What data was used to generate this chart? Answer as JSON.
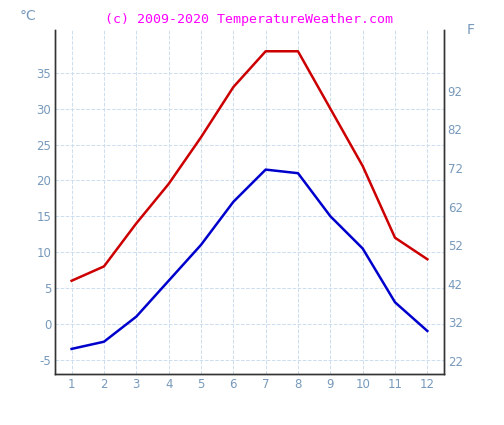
{
  "months": [
    1,
    2,
    3,
    4,
    5,
    6,
    7,
    8,
    9,
    10,
    11,
    12
  ],
  "temp_max_c": [
    6,
    8,
    14,
    19.5,
    26,
    33,
    38,
    38,
    30,
    22,
    12,
    9
  ],
  "temp_min_c": [
    -3.5,
    -2.5,
    1,
    6,
    11,
    17,
    21.5,
    21,
    15,
    10.5,
    3,
    -1
  ],
  "ylim_c": [
    -7,
    41
  ],
  "yticks_c": [
    -5,
    0,
    5,
    10,
    15,
    20,
    25,
    30,
    35
  ],
  "ylim_f": [
    18.6,
    107.8
  ],
  "yticks_f": [
    22,
    32,
    42,
    52,
    62,
    72,
    82,
    92
  ],
  "color_max": "#cc0000",
  "color_min": "#0000cc",
  "title": "(c) 2009-2020 TemperatureWeather.com",
  "title_color": "#ff00ff",
  "ylabel_left": "°C",
  "ylabel_right": "F",
  "tick_color": "#7799bb",
  "grid_color": "#ccddee",
  "spine_color": "#000000",
  "background_color": "#ffffff"
}
